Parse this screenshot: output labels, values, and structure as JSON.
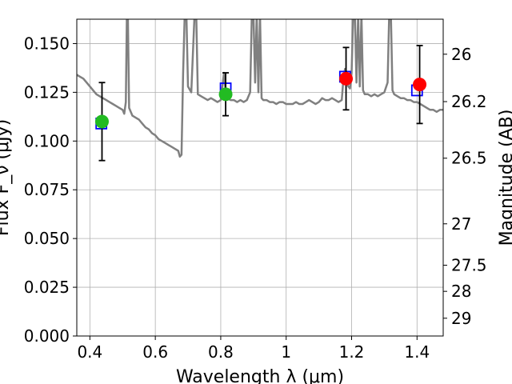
{
  "chart_data": {
    "type": "scatter",
    "xlabel": "Wavelength  λ (μm)",
    "ylabel": "Flux F_ν (μJy)",
    "y2label": "Magnitude (AB)",
    "xlim": [
      0.36,
      1.48
    ],
    "ylim": [
      0.0,
      0.1625
    ],
    "x_ticks": [
      0.4,
      0.6,
      0.8,
      1.0,
      1.2,
      1.4
    ],
    "x_tick_labels": [
      "0.4",
      "0.6",
      "0.8",
      "1",
      "1.2",
      "1.4"
    ],
    "y_ticks": [
      0.0,
      0.025,
      0.05,
      0.075,
      0.1,
      0.125,
      0.15
    ],
    "y_tick_labels": [
      "0.000",
      "0.025",
      "0.050",
      "0.075",
      "0.100",
      "0.125",
      "0.150"
    ],
    "y2_ticks": [
      26,
      26.2,
      26.5,
      27,
      27.5,
      28,
      29
    ],
    "y2_tick_labels": [
      "26",
      "26.2",
      "26.5",
      "27",
      "27.5",
      "28",
      "29"
    ],
    "grid": true,
    "series": [
      {
        "kind": "spectrum",
        "color": "#808080",
        "points": [
          [
            0.36,
            0.134
          ],
          [
            0.37,
            0.133
          ],
          [
            0.38,
            0.132
          ],
          [
            0.39,
            0.13
          ],
          [
            0.4,
            0.128
          ],
          [
            0.41,
            0.126
          ],
          [
            0.42,
            0.124
          ],
          [
            0.43,
            0.123
          ],
          [
            0.44,
            0.122
          ],
          [
            0.45,
            0.121
          ],
          [
            0.46,
            0.12
          ],
          [
            0.47,
            0.119
          ],
          [
            0.48,
            0.118
          ],
          [
            0.49,
            0.117
          ],
          [
            0.5,
            0.116
          ],
          [
            0.505,
            0.114
          ],
          [
            0.51,
            0.12
          ],
          [
            0.513,
            0.165
          ],
          [
            0.516,
            0.165
          ],
          [
            0.52,
            0.117
          ],
          [
            0.53,
            0.113
          ],
          [
            0.54,
            0.112
          ],
          [
            0.55,
            0.111
          ],
          [
            0.56,
            0.109
          ],
          [
            0.57,
            0.107
          ],
          [
            0.58,
            0.106
          ],
          [
            0.59,
            0.104
          ],
          [
            0.6,
            0.103
          ],
          [
            0.61,
            0.101
          ],
          [
            0.62,
            0.1
          ],
          [
            0.63,
            0.099
          ],
          [
            0.64,
            0.098
          ],
          [
            0.65,
            0.097
          ],
          [
            0.66,
            0.096
          ],
          [
            0.67,
            0.095
          ],
          [
            0.675,
            0.092
          ],
          [
            0.68,
            0.093
          ],
          [
            0.685,
            0.135
          ],
          [
            0.69,
            0.165
          ],
          [
            0.695,
            0.165
          ],
          [
            0.7,
            0.128
          ],
          [
            0.71,
            0.125
          ],
          [
            0.72,
            0.165
          ],
          [
            0.725,
            0.165
          ],
          [
            0.73,
            0.124
          ],
          [
            0.74,
            0.123
          ],
          [
            0.75,
            0.122
          ],
          [
            0.76,
            0.121
          ],
          [
            0.77,
            0.122
          ],
          [
            0.78,
            0.121
          ],
          [
            0.79,
            0.12
          ],
          [
            0.8,
            0.121
          ],
          [
            0.805,
            0.128
          ],
          [
            0.81,
            0.135
          ],
          [
            0.815,
            0.125
          ],
          [
            0.82,
            0.122
          ],
          [
            0.83,
            0.121
          ],
          [
            0.84,
            0.121
          ],
          [
            0.85,
            0.12
          ],
          [
            0.86,
            0.121
          ],
          [
            0.87,
            0.12
          ],
          [
            0.88,
            0.121
          ],
          [
            0.89,
            0.125
          ],
          [
            0.895,
            0.165
          ],
          [
            0.9,
            0.165
          ],
          [
            0.905,
            0.13
          ],
          [
            0.91,
            0.165
          ],
          [
            0.915,
            0.125
          ],
          [
            0.92,
            0.165
          ],
          [
            0.925,
            0.122
          ],
          [
            0.93,
            0.121
          ],
          [
            0.94,
            0.121
          ],
          [
            0.95,
            0.12
          ],
          [
            0.96,
            0.12
          ],
          [
            0.97,
            0.119
          ],
          [
            0.98,
            0.12
          ],
          [
            0.99,
            0.12
          ],
          [
            1.0,
            0.119
          ],
          [
            1.01,
            0.119
          ],
          [
            1.02,
            0.119
          ],
          [
            1.03,
            0.12
          ],
          [
            1.04,
            0.119
          ],
          [
            1.05,
            0.119
          ],
          [
            1.06,
            0.12
          ],
          [
            1.07,
            0.121
          ],
          [
            1.08,
            0.12
          ],
          [
            1.09,
            0.119
          ],
          [
            1.1,
            0.12
          ],
          [
            1.11,
            0.122
          ],
          [
            1.12,
            0.121
          ],
          [
            1.13,
            0.121
          ],
          [
            1.14,
            0.122
          ],
          [
            1.15,
            0.121
          ],
          [
            1.16,
            0.12
          ],
          [
            1.17,
            0.121
          ],
          [
            1.175,
            0.132
          ],
          [
            1.18,
            0.137
          ],
          [
            1.185,
            0.13
          ],
          [
            1.19,
            0.128
          ],
          [
            1.195,
            0.127
          ],
          [
            1.2,
            0.135
          ],
          [
            1.205,
            0.165
          ],
          [
            1.21,
            0.165
          ],
          [
            1.215,
            0.13
          ],
          [
            1.22,
            0.165
          ],
          [
            1.225,
            0.128
          ],
          [
            1.23,
            0.165
          ],
          [
            1.235,
            0.126
          ],
          [
            1.24,
            0.124
          ],
          [
            1.25,
            0.124
          ],
          [
            1.26,
            0.123
          ],
          [
            1.27,
            0.124
          ],
          [
            1.28,
            0.123
          ],
          [
            1.29,
            0.124
          ],
          [
            1.3,
            0.125
          ],
          [
            1.31,
            0.13
          ],
          [
            1.315,
            0.165
          ],
          [
            1.32,
            0.165
          ],
          [
            1.325,
            0.126
          ],
          [
            1.33,
            0.124
          ],
          [
            1.34,
            0.123
          ],
          [
            1.35,
            0.122
          ],
          [
            1.36,
            0.122
          ],
          [
            1.37,
            0.121
          ],
          [
            1.38,
            0.121
          ],
          [
            1.39,
            0.12
          ],
          [
            1.4,
            0.12
          ],
          [
            1.41,
            0.119
          ],
          [
            1.42,
            0.118
          ],
          [
            1.43,
            0.117
          ],
          [
            1.44,
            0.116
          ],
          [
            1.45,
            0.116
          ],
          [
            1.46,
            0.115
          ],
          [
            1.47,
            0.116
          ],
          [
            1.48,
            0.116
          ]
        ]
      },
      {
        "kind": "model_points",
        "marker": "open-square",
        "color": "#0000ff",
        "points": [
          [
            0.435,
            0.109
          ],
          [
            0.815,
            0.127
          ],
          [
            1.18,
            0.133
          ],
          [
            1.4,
            0.126
          ]
        ]
      },
      {
        "kind": "observations",
        "marker": "filled-circle",
        "points": [
          {
            "x": 0.437,
            "y": 0.11,
            "err": [
              0.09,
              0.13
            ],
            "color": "#22bb22"
          },
          {
            "x": 0.815,
            "y": 0.124,
            "err": [
              0.113,
              0.135
            ],
            "color": "#22bb22"
          },
          {
            "x": 1.183,
            "y": 0.132,
            "err": [
              0.116,
              0.148
            ],
            "color": "#ff0000"
          },
          {
            "x": 1.408,
            "y": 0.129,
            "err": [
              0.109,
              0.149
            ],
            "color": "#ff0000"
          }
        ]
      }
    ]
  }
}
